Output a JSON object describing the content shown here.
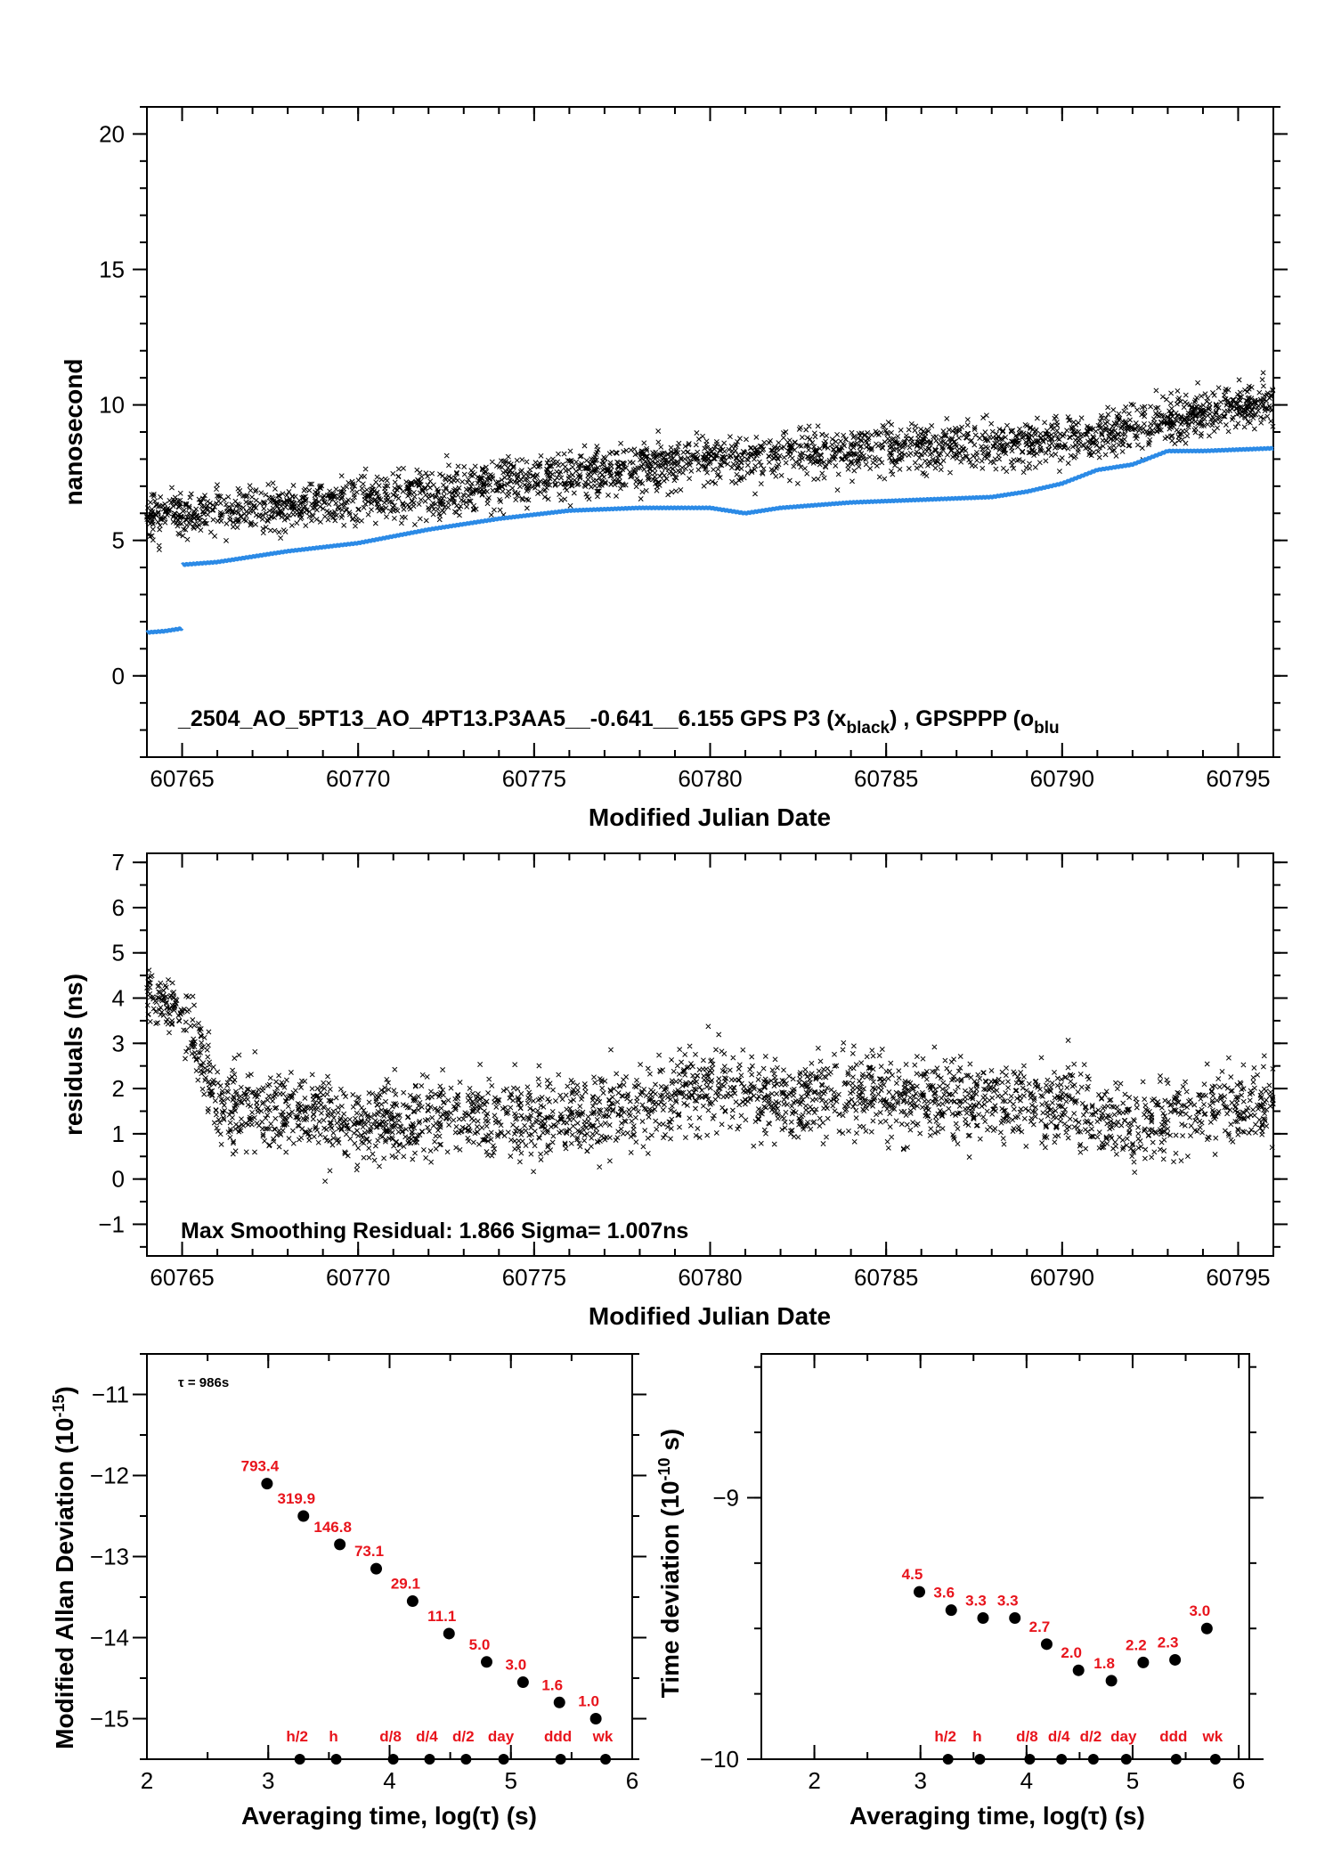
{
  "chart_data": [
    {
      "type": "scatter",
      "xlabel": "Modified Julian Date",
      "ylabel": "nanosecond",
      "xlim": [
        60764,
        60796
      ],
      "ylim": [
        -3,
        21
      ],
      "xticks": [
        60765,
        60770,
        60775,
        60780,
        60785,
        60790,
        60795
      ],
      "yticks": [
        0,
        5,
        10,
        15,
        20
      ],
      "annotation": {
        "main": "_2504_AO_5PT13_AO_4PT13.P3AA5__-0.641__6.155     GPS P3 (x",
        "sub1": "black",
        "mid": ") ,  GPSPPP (o",
        "sub2": "blu"
      },
      "series": [
        {
          "name": "GPS P3",
          "marker": "x",
          "color": "#000000",
          "x": [
            60764,
            60765,
            60766,
            60768,
            60770,
            60772,
            60774,
            60776,
            60778,
            60780,
            60782,
            60784,
            60786,
            60788,
            60790,
            60792,
            60794,
            60796
          ],
          "y": [
            5.9,
            6.0,
            6.1,
            6.3,
            6.5,
            6.8,
            7.1,
            7.4,
            7.7,
            8.0,
            8.1,
            8.3,
            8.4,
            8.5,
            8.7,
            9.2,
            9.7,
            10.2
          ]
        },
        {
          "name": "GPSPPP",
          "marker": "o",
          "color": "#2b8ae6",
          "segments": [
            {
              "x": [
                60764,
                60764.5,
                60765
              ],
              "y": [
                1.6,
                1.65,
                1.75
              ]
            },
            {
              "x": [
                60765,
                60766,
                60768,
                60770,
                60772,
                60774,
                60776,
                60778,
                60780,
                60781,
                60782,
                60784,
                60786,
                60788,
                60789,
                60790,
                60791,
                60792,
                60793,
                60794,
                60796
              ],
              "y": [
                4.1,
                4.2,
                4.6,
                4.9,
                5.4,
                5.8,
                6.1,
                6.2,
                6.2,
                6.0,
                6.2,
                6.4,
                6.5,
                6.6,
                6.8,
                7.1,
                7.6,
                7.8,
                8.3,
                8.3,
                8.4
              ]
            }
          ]
        }
      ]
    },
    {
      "type": "scatter",
      "xlabel": "Modified Julian Date",
      "ylabel": "residuals (ns)",
      "xlim": [
        60764,
        60796
      ],
      "ylim": [
        -1.7,
        7.2
      ],
      "xticks": [
        60765,
        60770,
        60775,
        60780,
        60785,
        60790,
        60795
      ],
      "yticks": [
        -1,
        0,
        1,
        2,
        3,
        4,
        5,
        6,
        7
      ],
      "annotation": "Max Smoothing Residual: 1.866  Sigma= 1.007ns",
      "series": [
        {
          "name": "residuals",
          "marker": "x",
          "color": "#000000",
          "x": [
            60764,
            60765,
            60766,
            60768,
            60770,
            60772,
            60774,
            60776,
            60778,
            60780,
            60782,
            60784,
            60786,
            60788,
            60790,
            60792,
            60794,
            60796
          ],
          "y": [
            4.2,
            3.8,
            1.6,
            1.5,
            1.2,
            1.3,
            1.4,
            1.3,
            1.7,
            2.0,
            1.8,
            1.9,
            1.8,
            1.8,
            1.6,
            1.2,
            1.5,
            1.7
          ]
        }
      ]
    },
    {
      "type": "scatter",
      "xlabel": "Averaging time, log(τ) (s)",
      "ylabel": "Modified Allan Deviation (10",
      "ylabel_sup": "-15",
      "ylabel_end": ")",
      "note": "τ = 986s",
      "xlim": [
        2,
        6
      ],
      "ylim": [
        -15.5,
        -10.5
      ],
      "xticks": [
        2,
        3,
        4,
        5,
        6
      ],
      "yticks": [
        -15,
        -14,
        -13,
        -12,
        -11
      ],
      "points": {
        "x": [
          2.99,
          3.29,
          3.59,
          3.89,
          4.19,
          4.49,
          4.8,
          5.1,
          5.4,
          5.7
        ],
        "y": [
          -12.1,
          -12.5,
          -12.85,
          -13.15,
          -13.55,
          -13.95,
          -14.3,
          -14.55,
          -14.8,
          -15.0
        ],
        "labels": [
          "793.4",
          "319.9",
          "146.8",
          "73.1",
          "29.1",
          "11.1",
          "5.0",
          "3.0",
          "1.6",
          "1.0"
        ]
      },
      "markers": {
        "x": [
          3.26,
          3.56,
          4.03,
          4.33,
          4.63,
          4.94,
          5.41,
          5.78
        ],
        "labels": [
          "h/2",
          "h",
          "d/8",
          "d/4",
          "d/2",
          "day",
          "ddd",
          "wk"
        ]
      }
    },
    {
      "type": "scatter",
      "xlabel": "Averaging time, log(τ) (s)",
      "ylabel": "Time deviation (10",
      "ylabel_sup": "-10",
      "ylabel_end": " s)",
      "xlim": [
        1.5,
        6.1
      ],
      "ylim": [
        -10.0,
        -8.45
      ],
      "xticks": [
        2,
        3,
        4,
        5,
        6
      ],
      "yticks": [
        -10,
        -9
      ],
      "points": {
        "x": [
          2.99,
          3.29,
          3.59,
          3.89,
          4.19,
          4.49,
          4.8,
          5.1,
          5.4,
          5.7
        ],
        "y": [
          -9.36,
          -9.43,
          -9.46,
          -9.46,
          -9.56,
          -9.66,
          -9.7,
          -9.63,
          -9.62,
          -9.5
        ],
        "labels": [
          "4.5",
          "3.6",
          "3.3",
          "3.3",
          "2.7",
          "2.0",
          "1.8",
          "2.2",
          "2.3",
          "3.0"
        ]
      },
      "markers": {
        "x": [
          3.26,
          3.56,
          4.03,
          4.33,
          4.63,
          4.94,
          5.41,
          5.78
        ],
        "labels": [
          "h/2",
          "h",
          "d/8",
          "d/4",
          "d/2",
          "day",
          "ddd",
          "wk"
        ]
      }
    }
  ]
}
